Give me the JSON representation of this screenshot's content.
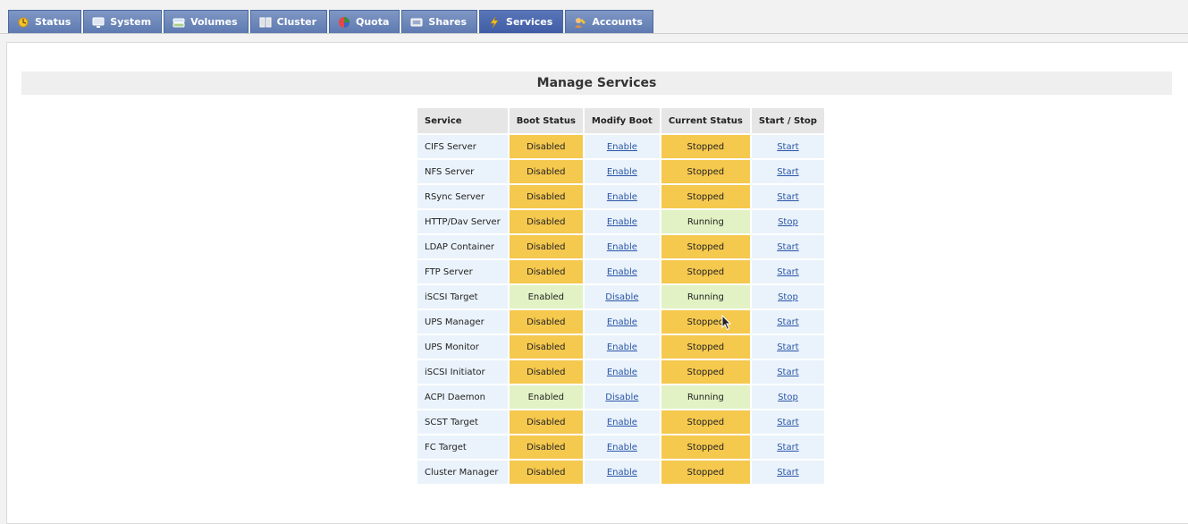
{
  "tabs": [
    {
      "label": "Status",
      "icon": "status-icon",
      "active": false
    },
    {
      "label": "System",
      "icon": "system-icon",
      "active": false
    },
    {
      "label": "Volumes",
      "icon": "volumes-icon",
      "active": false
    },
    {
      "label": "Cluster",
      "icon": "cluster-icon",
      "active": false
    },
    {
      "label": "Quota",
      "icon": "quota-icon",
      "active": false
    },
    {
      "label": "Shares",
      "icon": "shares-icon",
      "active": false
    },
    {
      "label": "Services",
      "icon": "services-icon",
      "active": true
    },
    {
      "label": "Accounts",
      "icon": "accounts-icon",
      "active": false
    }
  ],
  "page_title": "Manage Services",
  "table": {
    "headers": [
      "Service",
      "Boot Status",
      "Modify Boot",
      "Current Status",
      "Start / Stop"
    ],
    "rows": [
      {
        "service": "CIFS Server",
        "boot": "Disabled",
        "modify": "Enable",
        "current": "Stopped",
        "action": "Start"
      },
      {
        "service": "NFS Server",
        "boot": "Disabled",
        "modify": "Enable",
        "current": "Stopped",
        "action": "Start"
      },
      {
        "service": "RSync Server",
        "boot": "Disabled",
        "modify": "Enable",
        "current": "Stopped",
        "action": "Start"
      },
      {
        "service": "HTTP/Dav Server",
        "boot": "Disabled",
        "modify": "Enable",
        "current": "Running",
        "action": "Stop"
      },
      {
        "service": "LDAP Container",
        "boot": "Disabled",
        "modify": "Enable",
        "current": "Stopped",
        "action": "Start"
      },
      {
        "service": "FTP Server",
        "boot": "Disabled",
        "modify": "Enable",
        "current": "Stopped",
        "action": "Start"
      },
      {
        "service": "iSCSI Target",
        "boot": "Enabled",
        "modify": "Disable",
        "current": "Running",
        "action": "Stop"
      },
      {
        "service": "UPS Manager",
        "boot": "Disabled",
        "modify": "Enable",
        "current": "Stopped",
        "action": "Start"
      },
      {
        "service": "UPS Monitor",
        "boot": "Disabled",
        "modify": "Enable",
        "current": "Stopped",
        "action": "Start"
      },
      {
        "service": "iSCSI Initiator",
        "boot": "Disabled",
        "modify": "Enable",
        "current": "Stopped",
        "action": "Start"
      },
      {
        "service": "ACPI Daemon",
        "boot": "Enabled",
        "modify": "Disable",
        "current": "Running",
        "action": "Stop"
      },
      {
        "service": "SCST Target",
        "boot": "Disabled",
        "modify": "Enable",
        "current": "Stopped",
        "action": "Start"
      },
      {
        "service": "FC Target",
        "boot": "Disabled",
        "modify": "Enable",
        "current": "Stopped",
        "action": "Start"
      },
      {
        "service": "Cluster Manager",
        "boot": "Disabled",
        "modify": "Enable",
        "current": "Stopped",
        "action": "Start"
      }
    ]
  },
  "colors": {
    "tab_bg": "#6f88bd",
    "tab_active_bg": "#4a67ad",
    "status_bad": "#f5c84e",
    "status_good": "#e2f2c4",
    "cell_light": "#eaf3fb",
    "link": "#2a55a8"
  }
}
